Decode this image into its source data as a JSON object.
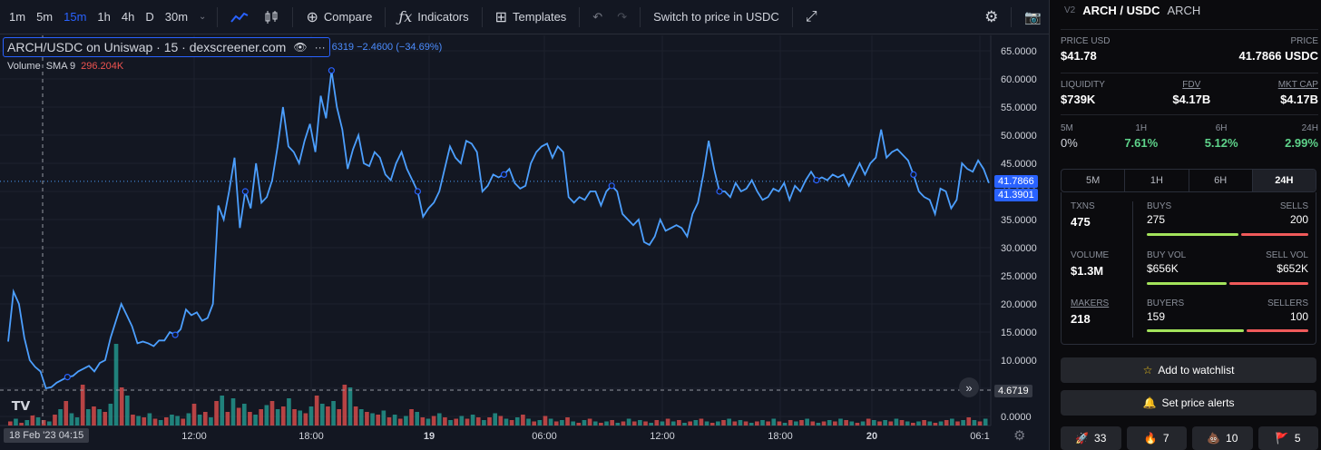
{
  "toolbar": {
    "timeframes": [
      "1m",
      "5m",
      "15m",
      "1h",
      "4h",
      "D",
      "30m"
    ],
    "active_timeframe": "15m",
    "compare_label": "Compare",
    "indicators_label": "Indicators",
    "templates_label": "Templates",
    "switch_label": "Switch to price in USDC"
  },
  "legend": {
    "symbol": "ARCH/USDC on Uniswap · 15 · dexscreener.com",
    "change": "6319  −2.4600 (−34.69%)",
    "volume_label": "Volume",
    "sma_label": "SMA 9",
    "volume_value": "296.204K"
  },
  "price_axis": {
    "ticks": [
      "65.0000",
      "60.0000",
      "55.0000",
      "50.0000",
      "45.0000",
      "40.0000",
      "35.0000",
      "30.0000",
      "25.0000",
      "20.0000",
      "15.0000",
      "10.0000",
      "5.0000",
      "0.0000"
    ],
    "last_price_tag": "41.7866",
    "second_price_tag": "41.3901",
    "crosshair_price_tag": "4.6719"
  },
  "time_axis": {
    "ticks": [
      "12:00",
      "18:00",
      "19",
      "06:00",
      "12:00",
      "18:00",
      "20",
      "06:1"
    ],
    "crosshair_label": "18 Feb '23   04:15"
  },
  "chart_data": {
    "type": "line",
    "ylim": [
      0,
      67
    ],
    "price_y": [
      13.3,
      22.2,
      20,
      14,
      10,
      8.8,
      8,
      5,
      5.2,
      6,
      6.5,
      7,
      7.2,
      8,
      8.5,
      9,
      8,
      9.5,
      10,
      14,
      17,
      20,
      18,
      16,
      13,
      13.3,
      13,
      12.5,
      13.5,
      13.5,
      15,
      14.5,
      15.5,
      19,
      18,
      18.5,
      17,
      17.5,
      20,
      37.5,
      35,
      40,
      46,
      33.5,
      40,
      37,
      45,
      38,
      39,
      42,
      48,
      55,
      48,
      47,
      45,
      49,
      52,
      47,
      57,
      53,
      61.5,
      55,
      51,
      44,
      47.5,
      50,
      45,
      44.5,
      47,
      46,
      43,
      42,
      45,
      47,
      44,
      42,
      40,
      35.5,
      37,
      38,
      40,
      44,
      48,
      46,
      45,
      49,
      48.5,
      47,
      40,
      41,
      43,
      42.5,
      43,
      44,
      41.5,
      40.5,
      41,
      45,
      47,
      48,
      48.5,
      46,
      48,
      47,
      39,
      38,
      39,
      38.5,
      40,
      40,
      37.5,
      40,
      41,
      40,
      36,
      35,
      34,
      35,
      31,
      30.5,
      32,
      35,
      33,
      33.5,
      34,
      33.5,
      32,
      36,
      38,
      43,
      49,
      44,
      40,
      40,
      39,
      41.5,
      40,
      40.5,
      42,
      40,
      38.5,
      39,
      40.5,
      40,
      41.5,
      38.5,
      41,
      40,
      42,
      43.5,
      42,
      42.5,
      42,
      43,
      42.5,
      43,
      41,
      43,
      45,
      43,
      45,
      46,
      51,
      46,
      47,
      47.5,
      46.5,
      45.5,
      43,
      40,
      39,
      38.5,
      36,
      40.5,
      40,
      37,
      38.5,
      45,
      44,
      43.5,
      45.5,
      44,
      41.5
    ],
    "volume_bars": [
      {
        "v": 3,
        "up": false
      },
      {
        "v": 5,
        "up": true
      },
      {
        "v": 2,
        "up": false
      },
      {
        "v": 4,
        "up": true
      },
      {
        "v": 20,
        "up": false
      },
      {
        "v": 6,
        "up": true
      },
      {
        "v": 4,
        "up": false
      },
      {
        "v": 3,
        "up": true
      },
      {
        "v": 8,
        "up": false
      },
      {
        "v": 12,
        "up": true
      },
      {
        "v": 18,
        "up": false
      },
      {
        "v": 9,
        "up": true
      },
      {
        "v": 6,
        "up": true
      },
      {
        "v": 30,
        "up": false
      },
      {
        "v": 12,
        "up": true
      },
      {
        "v": 14,
        "up": false
      },
      {
        "v": 12,
        "up": true
      },
      {
        "v": 10,
        "up": false
      },
      {
        "v": 16,
        "up": true
      },
      {
        "v": 60,
        "up": true
      },
      {
        "v": 28,
        "up": false
      },
      {
        "v": 22,
        "up": true
      },
      {
        "v": 8,
        "up": false
      },
      {
        "v": 7,
        "up": true
      },
      {
        "v": 6,
        "up": false
      },
      {
        "v": 9,
        "up": true
      },
      {
        "v": 5,
        "up": false
      },
      {
        "v": 4,
        "up": true
      },
      {
        "v": 6,
        "up": false
      },
      {
        "v": 8,
        "up": true
      },
      {
        "v": 7,
        "up": true
      },
      {
        "v": 5,
        "up": false
      },
      {
        "v": 9,
        "up": true
      },
      {
        "v": 16,
        "up": false
      },
      {
        "v": 8,
        "up": true
      },
      {
        "v": 10,
        "up": false
      },
      {
        "v": 6,
        "up": true
      },
      {
        "v": 18,
        "up": false
      },
      {
        "v": 22,
        "up": true
      },
      {
        "v": 10,
        "up": false
      },
      {
        "v": 20,
        "up": true
      },
      {
        "v": 13,
        "up": false
      },
      {
        "v": 16,
        "up": true
      },
      {
        "v": 10,
        "up": false
      },
      {
        "v": 8,
        "up": true
      },
      {
        "v": 12,
        "up": false
      },
      {
        "v": 15,
        "up": true
      },
      {
        "v": 18,
        "up": false
      },
      {
        "v": 12,
        "up": true
      },
      {
        "v": 14,
        "up": false
      },
      {
        "v": 20,
        "up": true
      },
      {
        "v": 12,
        "up": false
      },
      {
        "v": 11,
        "up": true
      },
      {
        "v": 9,
        "up": false
      },
      {
        "v": 14,
        "up": true
      },
      {
        "v": 22,
        "up": false
      },
      {
        "v": 16,
        "up": true
      },
      {
        "v": 14,
        "up": false
      },
      {
        "v": 18,
        "up": true
      },
      {
        "v": 12,
        "up": false
      },
      {
        "v": 30,
        "up": false
      },
      {
        "v": 28,
        "up": true
      },
      {
        "v": 14,
        "up": false
      },
      {
        "v": 12,
        "up": true
      },
      {
        "v": 10,
        "up": false
      },
      {
        "v": 9,
        "up": true
      },
      {
        "v": 8,
        "up": false
      },
      {
        "v": 11,
        "up": true
      },
      {
        "v": 6,
        "up": false
      },
      {
        "v": 8,
        "up": true
      },
      {
        "v": 5,
        "up": false
      },
      {
        "v": 7,
        "up": true
      },
      {
        "v": 12,
        "up": false
      },
      {
        "v": 10,
        "up": true
      },
      {
        "v": 6,
        "up": false
      },
      {
        "v": 5,
        "up": true
      },
      {
        "v": 7,
        "up": false
      },
      {
        "v": 9,
        "up": true
      },
      {
        "v": 6,
        "up": false
      },
      {
        "v": 4,
        "up": true
      },
      {
        "v": 5,
        "up": false
      },
      {
        "v": 7,
        "up": true
      },
      {
        "v": 5,
        "up": false
      },
      {
        "v": 8,
        "up": true
      },
      {
        "v": 6,
        "up": false
      },
      {
        "v": 4,
        "up": true
      },
      {
        "v": 6,
        "up": false
      },
      {
        "v": 9,
        "up": true
      },
      {
        "v": 7,
        "up": false
      },
      {
        "v": 5,
        "up": true
      },
      {
        "v": 4,
        "up": false
      },
      {
        "v": 6,
        "up": true
      },
      {
        "v": 8,
        "up": false
      },
      {
        "v": 5,
        "up": true
      },
      {
        "v": 3,
        "up": false
      },
      {
        "v": 4,
        "up": true
      },
      {
        "v": 7,
        "up": false
      },
      {
        "v": 5,
        "up": true
      },
      {
        "v": 3,
        "up": false
      },
      {
        "v": 4,
        "up": true
      },
      {
        "v": 6,
        "up": false
      },
      {
        "v": 3,
        "up": true
      },
      {
        "v": 2,
        "up": false
      },
      {
        "v": 4,
        "up": true
      },
      {
        "v": 5,
        "up": false
      },
      {
        "v": 3,
        "up": true
      },
      {
        "v": 2,
        "up": false
      },
      {
        "v": 3,
        "up": true
      },
      {
        "v": 4,
        "up": false
      },
      {
        "v": 2,
        "up": true
      },
      {
        "v": 3,
        "up": false
      },
      {
        "v": 5,
        "up": true
      },
      {
        "v": 3,
        "up": false
      },
      {
        "v": 4,
        "up": true
      },
      {
        "v": 3,
        "up": false
      },
      {
        "v": 2,
        "up": true
      },
      {
        "v": 4,
        "up": false
      },
      {
        "v": 3,
        "up": true
      },
      {
        "v": 5,
        "up": false
      },
      {
        "v": 3,
        "up": true
      },
      {
        "v": 4,
        "up": false
      },
      {
        "v": 2,
        "up": true
      },
      {
        "v": 3,
        "up": false
      },
      {
        "v": 4,
        "up": true
      },
      {
        "v": 5,
        "up": false
      },
      {
        "v": 3,
        "up": true
      },
      {
        "v": 2,
        "up": false
      },
      {
        "v": 3,
        "up": true
      },
      {
        "v": 4,
        "up": false
      },
      {
        "v": 5,
        "up": true
      },
      {
        "v": 3,
        "up": false
      },
      {
        "v": 4,
        "up": true
      },
      {
        "v": 3,
        "up": false
      },
      {
        "v": 2,
        "up": true
      },
      {
        "v": 3,
        "up": false
      },
      {
        "v": 4,
        "up": true
      },
      {
        "v": 3,
        "up": false
      },
      {
        "v": 5,
        "up": true
      },
      {
        "v": 3,
        "up": false
      },
      {
        "v": 2,
        "up": true
      },
      {
        "v": 4,
        "up": false
      },
      {
        "v": 3,
        "up": true
      },
      {
        "v": 4,
        "up": false
      },
      {
        "v": 5,
        "up": true
      },
      {
        "v": 3,
        "up": false
      },
      {
        "v": 2,
        "up": true
      },
      {
        "v": 3,
        "up": false
      },
      {
        "v": 4,
        "up": true
      },
      {
        "v": 3,
        "up": false
      },
      {
        "v": 5,
        "up": true
      },
      {
        "v": 4,
        "up": false
      },
      {
        "v": 3,
        "up": true
      },
      {
        "v": 2,
        "up": false
      },
      {
        "v": 3,
        "up": true
      },
      {
        "v": 5,
        "up": false
      },
      {
        "v": 4,
        "up": true
      },
      {
        "v": 3,
        "up": false
      },
      {
        "v": 4,
        "up": true
      },
      {
        "v": 3,
        "up": false
      },
      {
        "v": 5,
        "up": true
      },
      {
        "v": 4,
        "up": false
      },
      {
        "v": 3,
        "up": true
      },
      {
        "v": 2,
        "up": false
      },
      {
        "v": 3,
        "up": true
      },
      {
        "v": 4,
        "up": false
      },
      {
        "v": 3,
        "up": true
      },
      {
        "v": 2,
        "up": false
      },
      {
        "v": 3,
        "up": true
      },
      {
        "v": 4,
        "up": false
      },
      {
        "v": 5,
        "up": true
      },
      {
        "v": 3,
        "up": false
      },
      {
        "v": 4,
        "up": true
      },
      {
        "v": 6,
        "up": false
      },
      {
        "v": 4,
        "up": true
      },
      {
        "v": 3,
        "up": false
      },
      {
        "v": 5,
        "up": true
      }
    ],
    "markers": [
      11,
      31,
      44,
      60,
      76,
      92,
      112,
      132,
      150,
      168
    ],
    "colors": {
      "line": "#4c9ffe",
      "up": "#26a69a",
      "down": "#ef5350"
    }
  },
  "sidebar": {
    "version": "V2",
    "pair": "ARCH / USDC",
    "token": "ARCH",
    "price_usd_label": "PRICE USD",
    "price_usd": "$41.78",
    "price_label": "PRICE",
    "price": "41.7866 USDC",
    "liquidity_label": "LIQUIDITY",
    "liquidity": "$739K",
    "fdv_label": "FDV",
    "fdv": "$4.17B",
    "mktcap_label": "MKT CAP",
    "mktcap": "$4.17B",
    "changes": [
      {
        "label": "5M",
        "value": "0%"
      },
      {
        "label": "1H",
        "value": "7.61%"
      },
      {
        "label": "6H",
        "value": "5.12%"
      },
      {
        "label": "24H",
        "value": "2.99%"
      }
    ],
    "tabs": [
      "5M",
      "1H",
      "6H",
      "24H"
    ],
    "active_tab": "24H",
    "txns_label": "TXNS",
    "txns": "475",
    "buys_label": "BUYS",
    "buys": "275",
    "sells_label": "SELLS",
    "sells": "200",
    "volume_label": "VOLUME",
    "volume": "$1.3M",
    "buyvol_label": "BUY VOL",
    "buyvol": "$656K",
    "sellvol_label": "SELL VOL",
    "sellvol": "$652K",
    "makers_label": "MAKERS",
    "makers": "218",
    "buyers_label": "BUYERS",
    "buyers": "159",
    "sellers_label": "SELLERS",
    "sellers": "100",
    "buy_ratio": 0.58,
    "buyvol_ratio": 0.5,
    "buyers_ratio": 0.61,
    "watchlist_label": "Add to watchlist",
    "alerts_label": "Set price alerts",
    "reactions": [
      {
        "icon": "🚀",
        "count": "33"
      },
      {
        "icon": "🔥",
        "count": "7"
      },
      {
        "icon": "💩",
        "count": "10"
      },
      {
        "icon": "🚩",
        "count": "5"
      }
    ]
  }
}
